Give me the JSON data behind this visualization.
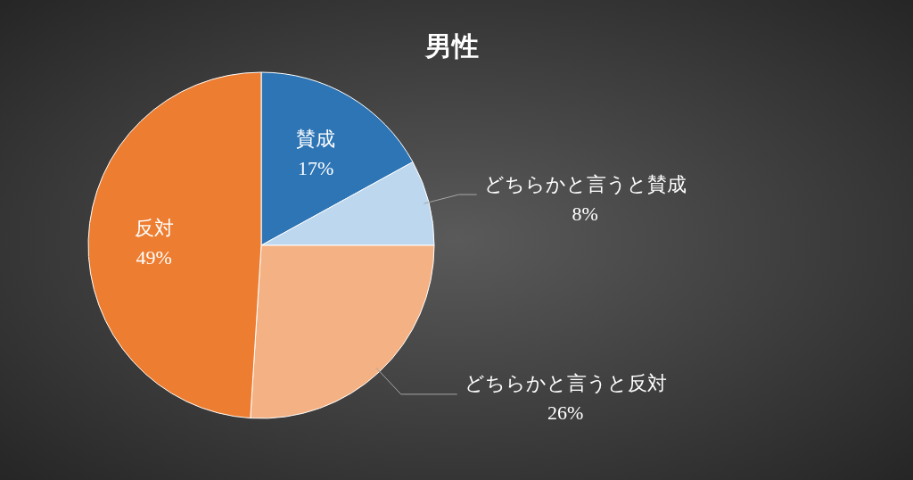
{
  "chart_data": {
    "type": "pie",
    "title": "男性",
    "categories": [
      "賛成",
      "どちらかと言うと賛成",
      "どちらかと言うと反対",
      "反対"
    ],
    "values": [
      17,
      8,
      26,
      49
    ],
    "value_labels": [
      "17%",
      "8%",
      "26%",
      "49%"
    ],
    "colors": [
      "#2e75b6",
      "#bdd7ee",
      "#f4b183",
      "#ed7d31"
    ]
  }
}
